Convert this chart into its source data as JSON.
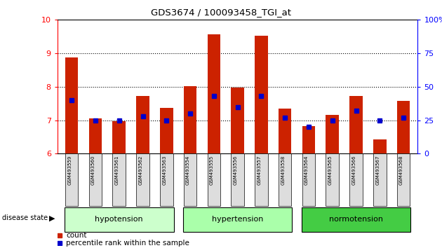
{
  "title": "GDS3674 / 100093458_TGI_at",
  "samples": [
    "GSM493559",
    "GSM493560",
    "GSM493561",
    "GSM493562",
    "GSM493563",
    "GSM493554",
    "GSM493555",
    "GSM493556",
    "GSM493557",
    "GSM493558",
    "GSM493564",
    "GSM493565",
    "GSM493566",
    "GSM493567",
    "GSM493568"
  ],
  "count_values": [
    8.87,
    7.05,
    6.98,
    7.72,
    7.38,
    8.02,
    9.57,
    7.97,
    9.52,
    7.35,
    6.83,
    7.17,
    7.72,
    6.43,
    7.57
  ],
  "percentile_values": [
    40,
    25,
    25,
    28,
    25,
    30,
    43,
    35,
    43,
    27,
    20,
    25,
    32,
    25,
    27
  ],
  "groups": [
    {
      "name": "hypotension",
      "indices": [
        0,
        1,
        2,
        3,
        4
      ],
      "color": "#ccffcc"
    },
    {
      "name": "hypertension",
      "indices": [
        5,
        6,
        7,
        8,
        9
      ],
      "color": "#aaffaa"
    },
    {
      "name": "normotension",
      "indices": [
        10,
        11,
        12,
        13,
        14
      ],
      "color": "#44cc44"
    }
  ],
  "ylim_left": [
    6,
    10
  ],
  "ylim_right": [
    0,
    100
  ],
  "yticks_left": [
    6,
    7,
    8,
    9,
    10
  ],
  "yticks_right": [
    0,
    25,
    50,
    75,
    100
  ],
  "bar_color": "#cc2200",
  "percentile_color": "#0000cc",
  "background_color": "#ffffff",
  "label_count": "count",
  "label_percentile": "percentile rank within the sample"
}
